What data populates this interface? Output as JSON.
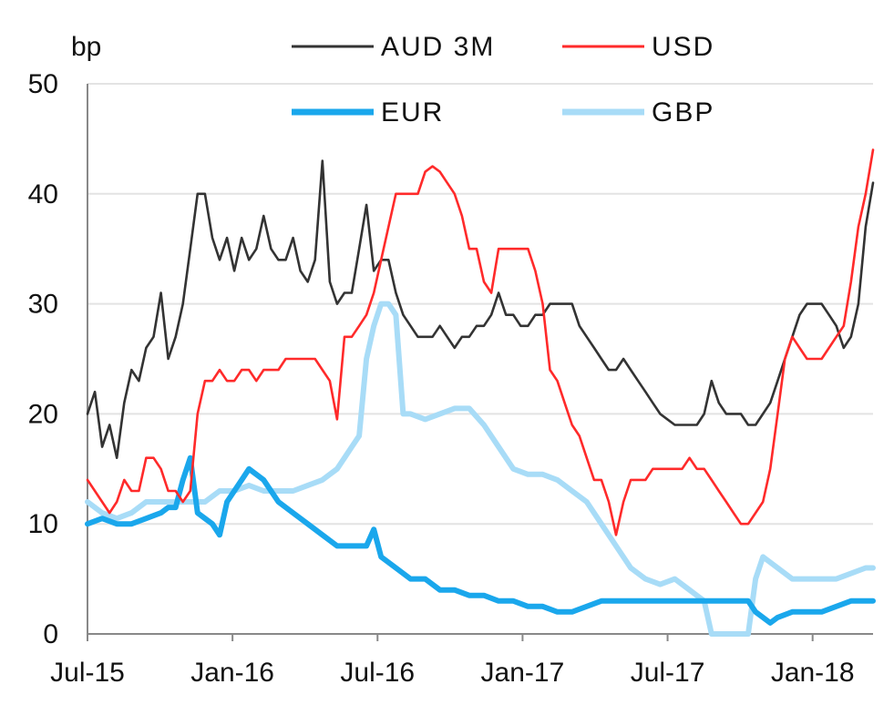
{
  "chart_data": {
    "type": "line",
    "ylabel": "bp",
    "ylim": [
      0,
      50
    ],
    "yticks": [
      "0",
      "10",
      "20",
      "30",
      "40",
      "50"
    ],
    "x_tick_labels": [
      "Jul-15",
      "Jan-16",
      "Jul-16",
      "Jan-17",
      "Jul-17",
      "Jan-18"
    ],
    "x_range": [
      "Jul-15",
      "Mar-18"
    ],
    "grid": "horizontal",
    "legend": "top",
    "series": [
      {
        "name": "AUD 3M",
        "color": "#333333",
        "width": "thin",
        "points": [
          [
            0,
            20
          ],
          [
            1,
            22
          ],
          [
            2,
            17
          ],
          [
            3,
            19
          ],
          [
            4,
            16
          ],
          [
            5,
            21
          ],
          [
            6,
            24
          ],
          [
            7,
            23
          ],
          [
            8,
            26
          ],
          [
            9,
            27
          ],
          [
            10,
            31
          ],
          [
            11,
            25
          ],
          [
            12,
            27
          ],
          [
            13,
            30
          ],
          [
            14,
            35
          ],
          [
            15,
            40
          ],
          [
            16,
            40
          ],
          [
            17,
            36
          ],
          [
            18,
            34
          ],
          [
            19,
            36
          ],
          [
            20,
            33
          ],
          [
            21,
            36
          ],
          [
            22,
            34
          ],
          [
            23,
            35
          ],
          [
            24,
            38
          ],
          [
            25,
            35
          ],
          [
            26,
            34
          ],
          [
            27,
            34
          ],
          [
            28,
            36
          ],
          [
            29,
            33
          ],
          [
            30,
            32
          ],
          [
            31,
            34
          ],
          [
            32,
            43
          ],
          [
            33,
            32
          ],
          [
            34,
            30
          ],
          [
            35,
            31
          ],
          [
            36,
            31
          ],
          [
            37,
            35
          ],
          [
            38,
            39
          ],
          [
            39,
            33
          ],
          [
            40,
            34
          ],
          [
            41,
            34
          ],
          [
            42,
            31
          ],
          [
            43,
            29
          ],
          [
            44,
            28
          ],
          [
            45,
            27
          ],
          [
            46,
            27
          ],
          [
            47,
            27
          ],
          [
            48,
            28
          ],
          [
            49,
            27
          ],
          [
            50,
            26
          ],
          [
            51,
            27
          ],
          [
            52,
            27
          ],
          [
            53,
            28
          ],
          [
            54,
            28
          ],
          [
            55,
            29
          ],
          [
            56,
            31
          ],
          [
            57,
            29
          ],
          [
            58,
            29
          ],
          [
            59,
            28
          ],
          [
            60,
            28
          ],
          [
            61,
            29
          ],
          [
            62,
            29
          ],
          [
            63,
            30
          ],
          [
            64,
            30
          ],
          [
            65,
            30
          ],
          [
            66,
            30
          ],
          [
            67,
            28
          ],
          [
            68,
            27
          ],
          [
            69,
            26
          ],
          [
            70,
            25
          ],
          [
            71,
            24
          ],
          [
            72,
            24
          ],
          [
            73,
            25
          ],
          [
            74,
            24
          ],
          [
            75,
            23
          ],
          [
            76,
            22
          ],
          [
            77,
            21
          ],
          [
            78,
            20
          ],
          [
            79,
            19.5
          ],
          [
            80,
            19
          ],
          [
            81,
            19
          ],
          [
            82,
            19
          ],
          [
            83,
            19
          ],
          [
            84,
            20
          ],
          [
            85,
            23
          ],
          [
            86,
            21
          ],
          [
            87,
            20
          ],
          [
            88,
            20
          ],
          [
            89,
            20
          ],
          [
            90,
            19
          ],
          [
            91,
            19
          ],
          [
            92,
            20
          ],
          [
            93,
            21
          ],
          [
            94,
            23
          ],
          [
            95,
            25
          ],
          [
            96,
            27
          ],
          [
            97,
            29
          ],
          [
            98,
            30
          ],
          [
            99,
            30
          ],
          [
            100,
            30
          ],
          [
            101,
            29
          ],
          [
            102,
            28
          ],
          [
            103,
            26
          ],
          [
            104,
            27
          ],
          [
            105,
            30
          ],
          [
            106,
            37
          ],
          [
            107,
            41
          ]
        ]
      },
      {
        "name": "USD",
        "color": "#ff2a2a",
        "width": "thin",
        "points": [
          [
            0,
            14
          ],
          [
            1,
            13
          ],
          [
            2,
            12
          ],
          [
            3,
            11
          ],
          [
            4,
            12
          ],
          [
            5,
            14
          ],
          [
            6,
            13
          ],
          [
            7,
            13
          ],
          [
            8,
            16
          ],
          [
            9,
            16
          ],
          [
            10,
            15
          ],
          [
            11,
            13
          ],
          [
            12,
            13
          ],
          [
            13,
            12
          ],
          [
            14,
            13
          ],
          [
            15,
            20
          ],
          [
            16,
            23
          ],
          [
            17,
            23
          ],
          [
            18,
            24
          ],
          [
            19,
            23
          ],
          [
            20,
            23
          ],
          [
            21,
            24
          ],
          [
            22,
            24
          ],
          [
            23,
            23
          ],
          [
            24,
            24
          ],
          [
            25,
            24
          ],
          [
            26,
            24
          ],
          [
            27,
            25
          ],
          [
            28,
            25
          ],
          [
            29,
            25
          ],
          [
            30,
            25
          ],
          [
            31,
            25
          ],
          [
            32,
            24
          ],
          [
            33,
            23
          ],
          [
            34,
            19.5
          ],
          [
            35,
            27
          ],
          [
            36,
            27
          ],
          [
            37,
            28
          ],
          [
            38,
            29
          ],
          [
            39,
            31
          ],
          [
            40,
            34
          ],
          [
            41,
            37
          ],
          [
            42,
            40
          ],
          [
            43,
            40
          ],
          [
            44,
            40
          ],
          [
            45,
            40
          ],
          [
            46,
            42
          ],
          [
            47,
            42.5
          ],
          [
            48,
            42
          ],
          [
            49,
            41
          ],
          [
            50,
            40
          ],
          [
            51,
            38
          ],
          [
            52,
            35
          ],
          [
            53,
            35
          ],
          [
            54,
            32
          ],
          [
            55,
            31
          ],
          [
            56,
            35
          ],
          [
            57,
            35
          ],
          [
            58,
            35
          ],
          [
            59,
            35
          ],
          [
            60,
            35
          ],
          [
            61,
            33
          ],
          [
            62,
            30
          ],
          [
            63,
            24
          ],
          [
            64,
            23
          ],
          [
            65,
            21
          ],
          [
            66,
            19
          ],
          [
            67,
            18
          ],
          [
            68,
            16
          ],
          [
            69,
            14
          ],
          [
            70,
            14
          ],
          [
            71,
            12
          ],
          [
            72,
            9
          ],
          [
            73,
            12
          ],
          [
            74,
            14
          ],
          [
            75,
            14
          ],
          [
            76,
            14
          ],
          [
            77,
            15
          ],
          [
            78,
            15
          ],
          [
            79,
            15
          ],
          [
            80,
            15
          ],
          [
            81,
            15
          ],
          [
            82,
            16
          ],
          [
            83,
            15
          ],
          [
            84,
            15
          ],
          [
            85,
            14
          ],
          [
            86,
            13
          ],
          [
            87,
            12
          ],
          [
            88,
            11
          ],
          [
            89,
            10
          ],
          [
            90,
            10
          ],
          [
            91,
            11
          ],
          [
            92,
            12
          ],
          [
            93,
            15
          ],
          [
            94,
            20
          ],
          [
            95,
            25
          ],
          [
            96,
            27
          ],
          [
            97,
            26
          ],
          [
            98,
            25
          ],
          [
            99,
            25
          ],
          [
            100,
            25
          ],
          [
            101,
            26
          ],
          [
            102,
            27
          ],
          [
            103,
            28
          ],
          [
            104,
            32
          ],
          [
            105,
            37
          ],
          [
            106,
            40
          ],
          [
            107,
            44
          ]
        ]
      },
      {
        "name": "EUR",
        "color": "#1aa7ec",
        "width": "thick",
        "points": [
          [
            0,
            10
          ],
          [
            2,
            10.5
          ],
          [
            4,
            10
          ],
          [
            6,
            10
          ],
          [
            8,
            10.5
          ],
          [
            10,
            11
          ],
          [
            11,
            11.5
          ],
          [
            12,
            11.5
          ],
          [
            13,
            14
          ],
          [
            14,
            16
          ],
          [
            15,
            11
          ],
          [
            16,
            10.5
          ],
          [
            17,
            10
          ],
          [
            18,
            9
          ],
          [
            19,
            12
          ],
          [
            20,
            13
          ],
          [
            21,
            14
          ],
          [
            22,
            15
          ],
          [
            24,
            14
          ],
          [
            26,
            12
          ],
          [
            28,
            11
          ],
          [
            30,
            10
          ],
          [
            32,
            9
          ],
          [
            34,
            8
          ],
          [
            36,
            8
          ],
          [
            38,
            8
          ],
          [
            39,
            9.5
          ],
          [
            40,
            7
          ],
          [
            42,
            6
          ],
          [
            44,
            5
          ],
          [
            46,
            5
          ],
          [
            48,
            4
          ],
          [
            50,
            4
          ],
          [
            52,
            3.5
          ],
          [
            54,
            3.5
          ],
          [
            56,
            3
          ],
          [
            58,
            3
          ],
          [
            60,
            2.5
          ],
          [
            62,
            2.5
          ],
          [
            64,
            2
          ],
          [
            66,
            2
          ],
          [
            68,
            2.5
          ],
          [
            70,
            3
          ],
          [
            72,
            3
          ],
          [
            74,
            3
          ],
          [
            76,
            3
          ],
          [
            78,
            3
          ],
          [
            80,
            3
          ],
          [
            82,
            3
          ],
          [
            84,
            3
          ],
          [
            86,
            3
          ],
          [
            88,
            3
          ],
          [
            90,
            3
          ],
          [
            91,
            2
          ],
          [
            92,
            1.5
          ],
          [
            93,
            1
          ],
          [
            94,
            1.5
          ],
          [
            96,
            2
          ],
          [
            98,
            2
          ],
          [
            100,
            2
          ],
          [
            102,
            2.5
          ],
          [
            104,
            3
          ],
          [
            107,
            3
          ]
        ]
      },
      {
        "name": "GBP",
        "color": "#a8dcf7",
        "width": "thick",
        "points": [
          [
            0,
            12
          ],
          [
            2,
            11
          ],
          [
            4,
            10.5
          ],
          [
            6,
            11
          ],
          [
            8,
            12
          ],
          [
            10,
            12
          ],
          [
            12,
            12
          ],
          [
            14,
            12
          ],
          [
            16,
            12
          ],
          [
            18,
            13
          ],
          [
            20,
            13
          ],
          [
            22,
            13.5
          ],
          [
            24,
            13
          ],
          [
            26,
            13
          ],
          [
            28,
            13
          ],
          [
            30,
            13.5
          ],
          [
            32,
            14
          ],
          [
            34,
            15
          ],
          [
            35,
            16
          ],
          [
            36,
            17
          ],
          [
            37,
            18
          ],
          [
            38,
            25
          ],
          [
            39,
            28
          ],
          [
            40,
            30
          ],
          [
            41,
            30
          ],
          [
            42,
            29
          ],
          [
            43,
            20
          ],
          [
            44,
            20
          ],
          [
            46,
            19.5
          ],
          [
            48,
            20
          ],
          [
            50,
            20.5
          ],
          [
            52,
            20.5
          ],
          [
            54,
            19
          ],
          [
            56,
            17
          ],
          [
            58,
            15
          ],
          [
            60,
            14.5
          ],
          [
            62,
            14.5
          ],
          [
            64,
            14
          ],
          [
            66,
            13
          ],
          [
            68,
            12
          ],
          [
            70,
            10
          ],
          [
            72,
            8
          ],
          [
            74,
            6
          ],
          [
            76,
            5
          ],
          [
            78,
            4.5
          ],
          [
            80,
            5
          ],
          [
            82,
            4
          ],
          [
            84,
            3
          ],
          [
            85,
            0
          ],
          [
            88,
            0
          ],
          [
            90,
            0
          ],
          [
            91,
            5
          ],
          [
            92,
            7
          ],
          [
            94,
            6
          ],
          [
            96,
            5
          ],
          [
            98,
            5
          ],
          [
            100,
            5
          ],
          [
            102,
            5
          ],
          [
            104,
            5.5
          ],
          [
            106,
            6
          ],
          [
            107,
            6
          ]
        ]
      }
    ]
  }
}
